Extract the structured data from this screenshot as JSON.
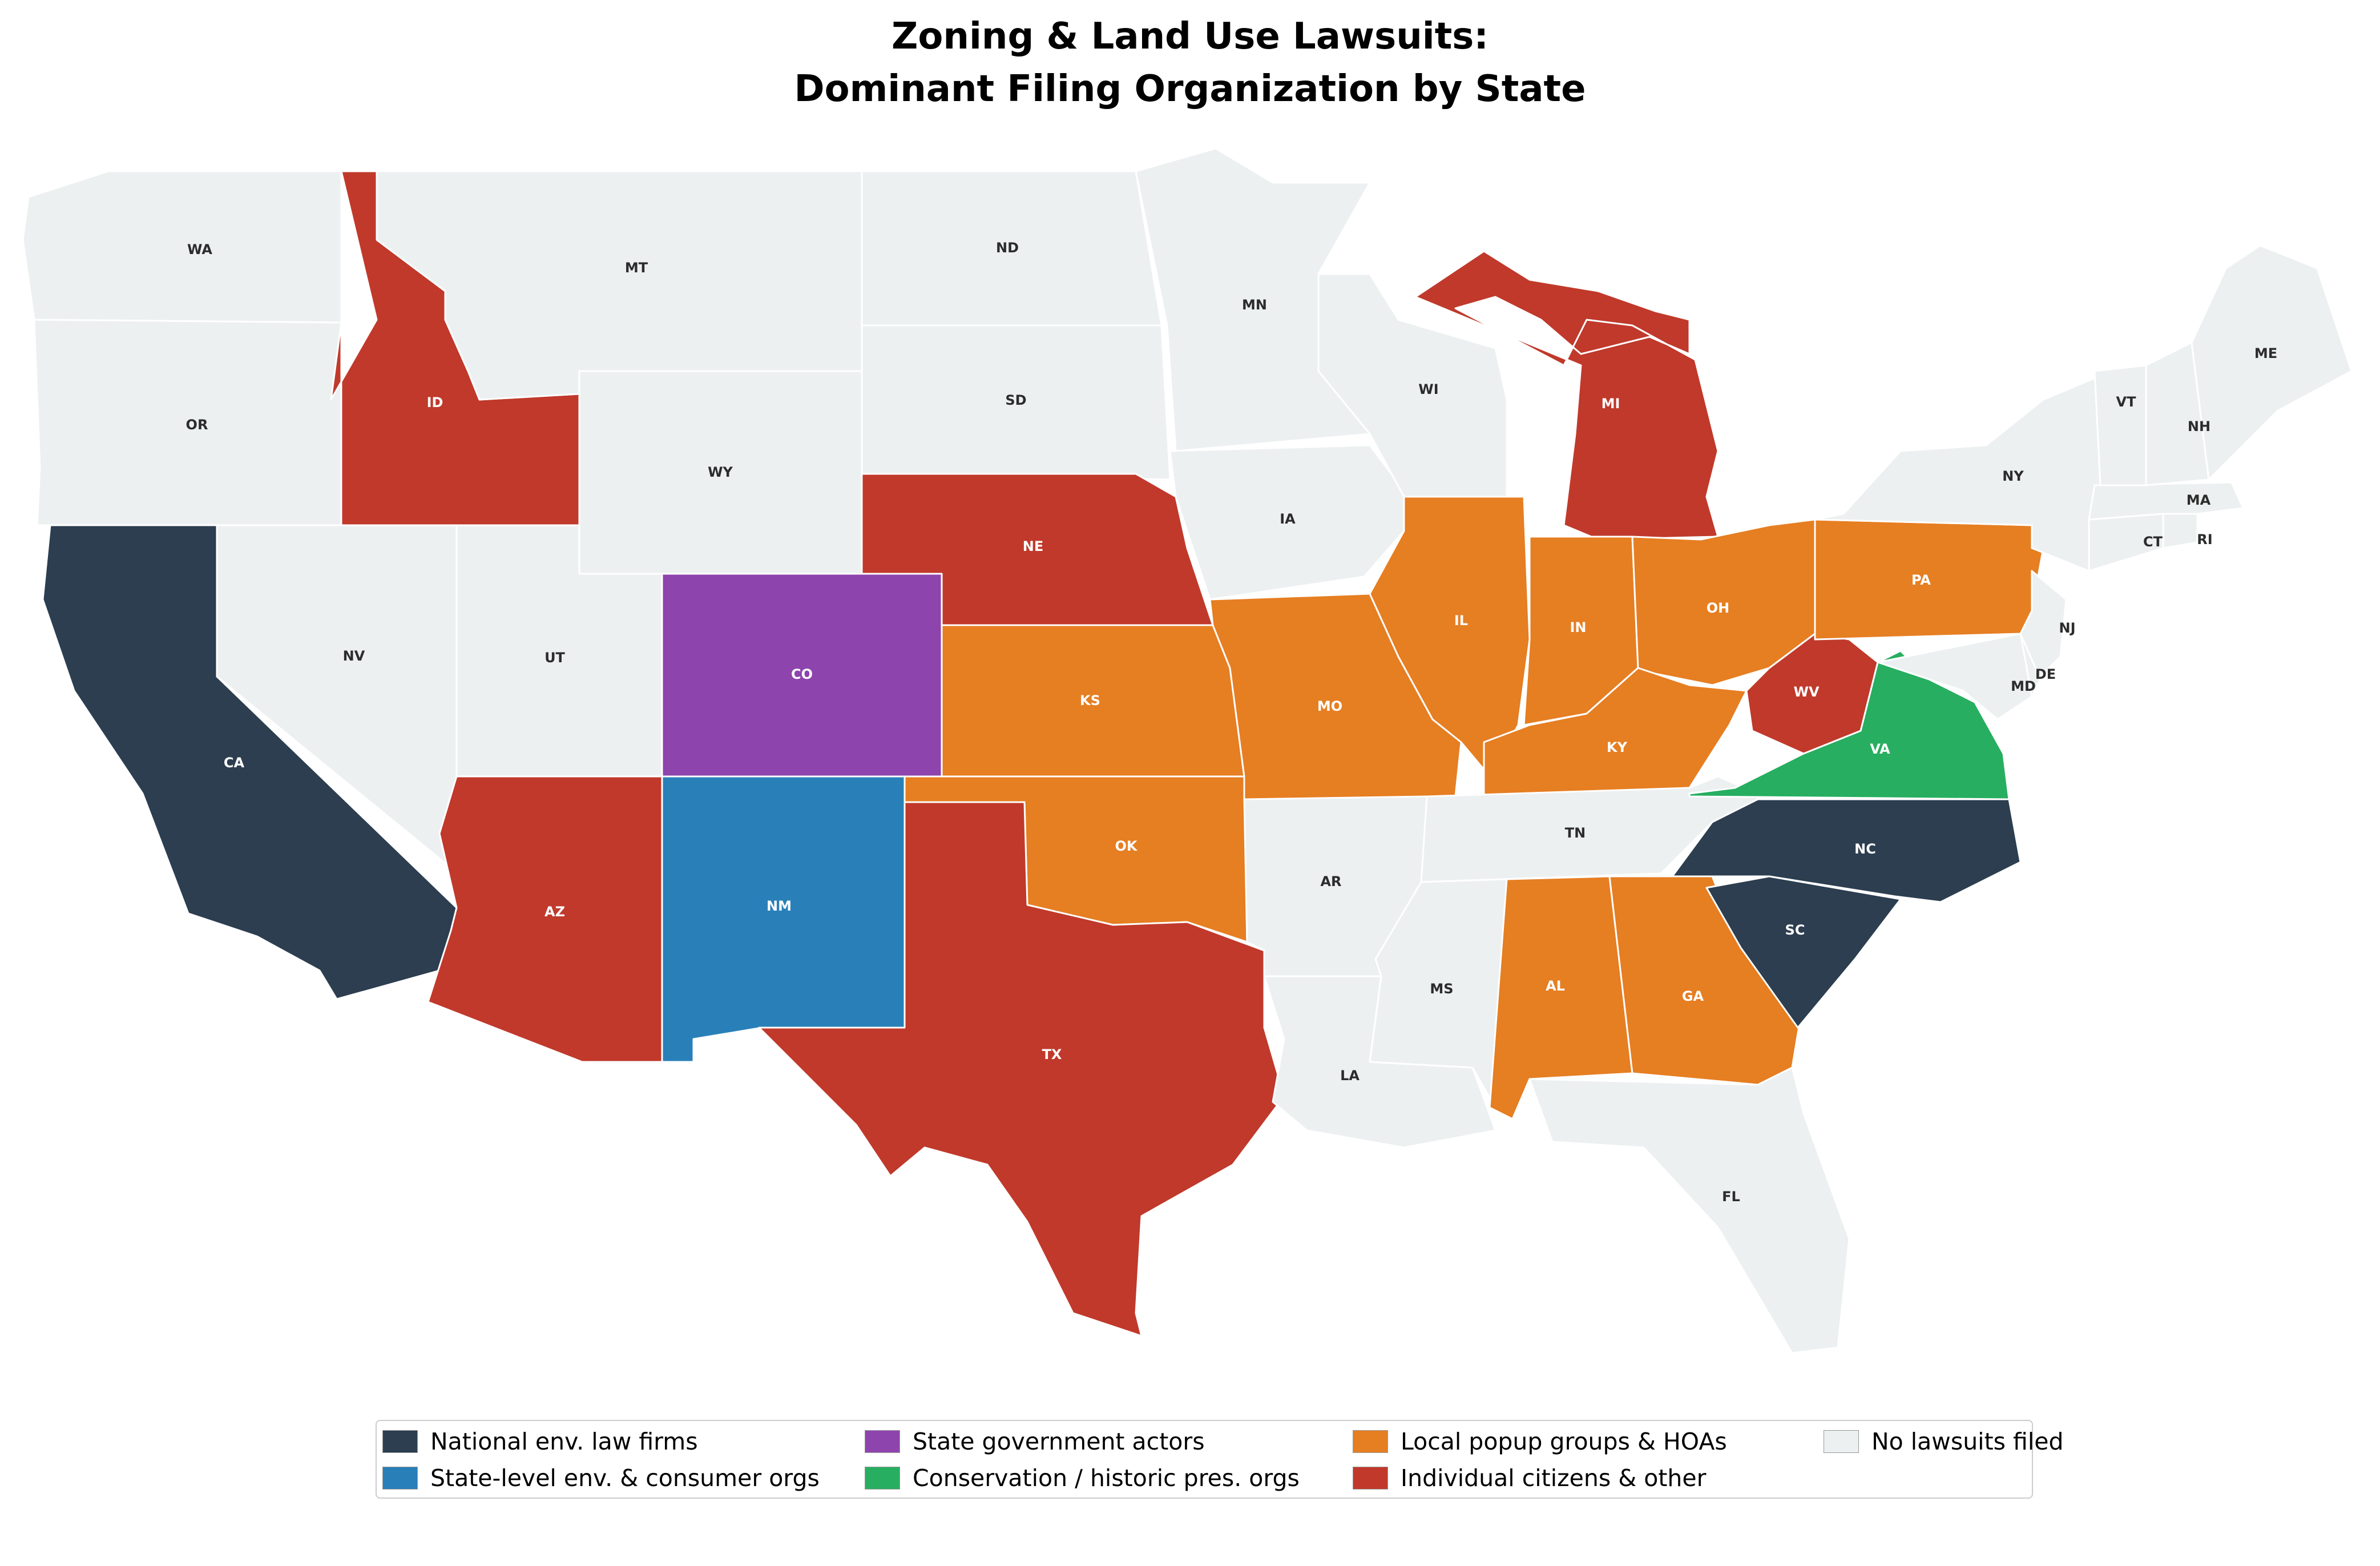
{
  "title": {
    "line1": "Zoning & Land Use Lawsuits:",
    "line2": "Dominant Filing Organization by State"
  },
  "colors": {
    "national": "#2c3e50",
    "state_env": "#2980b9",
    "state_gov": "#8e44ad",
    "conservation": "#27ae60",
    "local": "#e67e22",
    "individual": "#c0392b",
    "none": "#ecf0f1"
  },
  "legend": [
    {
      "key": "national",
      "label": "National env. law firms"
    },
    {
      "key": "state_env",
      "label": "State-level env. & consumer orgs"
    },
    {
      "key": "state_gov",
      "label": "State government actors"
    },
    {
      "key": "conservation",
      "label": "Conservation / historic pres. orgs"
    },
    {
      "key": "local",
      "label": "Local popup groups & HOAs"
    },
    {
      "key": "individual",
      "label": "Individual citizens & other"
    },
    {
      "key": "none",
      "label": "No lawsuits filed"
    }
  ],
  "states": [
    {
      "code": "WA",
      "category": "none"
    },
    {
      "code": "OR",
      "category": "none"
    },
    {
      "code": "CA",
      "category": "national"
    },
    {
      "code": "NV",
      "category": "none"
    },
    {
      "code": "ID",
      "category": "individual"
    },
    {
      "code": "MT",
      "category": "none"
    },
    {
      "code": "WY",
      "category": "none"
    },
    {
      "code": "UT",
      "category": "none"
    },
    {
      "code": "AZ",
      "category": "individual"
    },
    {
      "code": "CO",
      "category": "state_gov"
    },
    {
      "code": "NM",
      "category": "state_env"
    },
    {
      "code": "ND",
      "category": "none"
    },
    {
      "code": "SD",
      "category": "none"
    },
    {
      "code": "NE",
      "category": "individual"
    },
    {
      "code": "KS",
      "category": "local"
    },
    {
      "code": "OK",
      "category": "local"
    },
    {
      "code": "TX",
      "category": "individual"
    },
    {
      "code": "MN",
      "category": "none"
    },
    {
      "code": "IA",
      "category": "none"
    },
    {
      "code": "MO",
      "category": "local"
    },
    {
      "code": "AR",
      "category": "none"
    },
    {
      "code": "LA",
      "category": "none"
    },
    {
      "code": "WI",
      "category": "none"
    },
    {
      "code": "IL",
      "category": "local"
    },
    {
      "code": "MI",
      "category": "individual"
    },
    {
      "code": "IN",
      "category": "local"
    },
    {
      "code": "OH",
      "category": "local"
    },
    {
      "code": "KY",
      "category": "local"
    },
    {
      "code": "TN",
      "category": "none"
    },
    {
      "code": "MS",
      "category": "none"
    },
    {
      "code": "AL",
      "category": "local"
    },
    {
      "code": "GA",
      "category": "local"
    },
    {
      "code": "FL",
      "category": "none"
    },
    {
      "code": "SC",
      "category": "national"
    },
    {
      "code": "NC",
      "category": "national"
    },
    {
      "code": "VA",
      "category": "conservation"
    },
    {
      "code": "WV",
      "category": "individual"
    },
    {
      "code": "PA",
      "category": "local"
    },
    {
      "code": "NY",
      "category": "none"
    },
    {
      "code": "NJ",
      "category": "none"
    },
    {
      "code": "DE",
      "category": "none"
    },
    {
      "code": "MD",
      "category": "none"
    },
    {
      "code": "CT",
      "category": "none"
    },
    {
      "code": "RI",
      "category": "none"
    },
    {
      "code": "MA",
      "category": "none"
    },
    {
      "code": "VT",
      "category": "none"
    },
    {
      "code": "NH",
      "category": "none"
    },
    {
      "code": "ME",
      "category": "none"
    }
  ]
}
